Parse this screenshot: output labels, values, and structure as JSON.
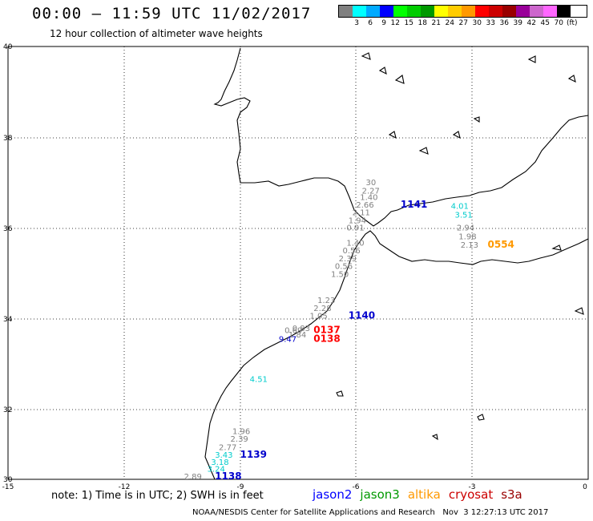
{
  "header": {
    "title": "00:00 – 11:59 UTC 11/02/2017",
    "subtitle": "12 hour collection of altimeter wave heights"
  },
  "legend": {
    "colors": [
      "#808080",
      "#00ffff",
      "#00aaff",
      "#0000ff",
      "#00ff00",
      "#00cc00",
      "#009900",
      "#ffff00",
      "#ffcc00",
      "#ff9900",
      "#ff0000",
      "#cc0000",
      "#990000",
      "#990099",
      "#cc66cc",
      "#ff66ff",
      "#000000"
    ],
    "labels": [
      "3",
      "6",
      "9",
      "12",
      "15",
      "18",
      "21",
      "24",
      "27",
      "30",
      "33",
      "36",
      "39",
      "42",
      "45",
      "70"
    ],
    "unit": "(ft)"
  },
  "map": {
    "lat_labels": [
      "40",
      "38",
      "36",
      "34",
      "32",
      "30"
    ],
    "lon_labels": [
      "-15",
      "-12",
      "-9",
      "-6",
      "-3",
      "0"
    ],
    "markers": [
      {
        "text": "30",
        "color": "#808080",
        "lon": -5.75,
        "lat": 36.8
      },
      {
        "text": "2.27",
        "color": "#808080",
        "lon": -5.85,
        "lat": 36.6
      },
      {
        "text": "1.40",
        "color": "#808080",
        "lon": -5.9,
        "lat": 36.45
      },
      {
        "text": "2.66",
        "color": "#808080",
        "lon": -6.0,
        "lat": 36.28
      },
      {
        "text": "2.11",
        "color": "#808080",
        "lon": -6.1,
        "lat": 36.1
      },
      {
        "text": "1.94",
        "color": "#808080",
        "lon": -6.2,
        "lat": 35.92
      },
      {
        "text": "0.91",
        "color": "#808080",
        "lon": -6.25,
        "lat": 35.75
      },
      {
        "text": "1141",
        "color": "#0000cc",
        "lon": -4.85,
        "lat": 36.28
      },
      {
        "text": "4.01",
        "color": "#00cccc",
        "lon": -3.55,
        "lat": 36.25
      },
      {
        "text": "3.51",
        "color": "#00cccc",
        "lon": -3.45,
        "lat": 36.05
      },
      {
        "text": "2.94",
        "color": "#808080",
        "lon": -3.4,
        "lat": 35.75
      },
      {
        "text": "1.98",
        "color": "#808080",
        "lon": -3.35,
        "lat": 35.55
      },
      {
        "text": "2.13",
        "color": "#808080",
        "lon": -3.3,
        "lat": 35.35
      },
      {
        "text": "0554",
        "color": "#ff9900",
        "lon": -2.6,
        "lat": 35.35
      },
      {
        "text": "1.40",
        "color": "#808080",
        "lon": -6.25,
        "lat": 35.4
      },
      {
        "text": "0.56",
        "color": "#808080",
        "lon": -6.35,
        "lat": 35.22
      },
      {
        "text": "2.39",
        "color": "#808080",
        "lon": -6.45,
        "lat": 35.04
      },
      {
        "text": "0.56",
        "color": "#808080",
        "lon": -6.55,
        "lat": 34.86
      },
      {
        "text": "1.50",
        "color": "#808080",
        "lon": -6.65,
        "lat": 34.68
      },
      {
        "text": "1.23",
        "color": "#808080",
        "lon": -7.0,
        "lat": 34.07
      },
      {
        "text": "2.28",
        "color": "#808080",
        "lon": -7.1,
        "lat": 33.89
      },
      {
        "text": "1.05",
        "color": "#808080",
        "lon": -7.2,
        "lat": 33.71
      },
      {
        "text": "1140",
        "color": "#0000cc",
        "lon": -6.2,
        "lat": 33.71
      },
      {
        "text": "0.69",
        "color": "#808080",
        "lon": -7.85,
        "lat": 33.38
      },
      {
        "text": "0.83",
        "color": "#808080",
        "lon": -7.65,
        "lat": 33.43
      },
      {
        "text": "0137",
        "color": "#ff0000",
        "lon": -7.1,
        "lat": 33.38
      },
      {
        "text": "1.84",
        "color": "#808080",
        "lon": -7.75,
        "lat": 33.28
      },
      {
        "text": "9.47",
        "color": "#0000cc",
        "lon": -8.0,
        "lat": 33.18
      },
      {
        "text": "0138",
        "color": "#ff0000",
        "lon": -7.1,
        "lat": 33.18
      },
      {
        "text": "4.51",
        "color": "#00cccc",
        "lon": -8.75,
        "lat": 32.25
      },
      {
        "text": "1.96",
        "color": "#808080",
        "lon": -9.2,
        "lat": 31.05
      },
      {
        "text": "2.39",
        "color": "#808080",
        "lon": -9.25,
        "lat": 30.87
      },
      {
        "text": "3.43",
        "color": "#00cccc",
        "lon": -9.65,
        "lat": 30.5
      },
      {
        "text": "2.77",
        "color": "#808080",
        "lon": -9.55,
        "lat": 30.68
      },
      {
        "text": "1139",
        "color": "#0000cc",
        "lon": -9.0,
        "lat": 30.5
      },
      {
        "text": "3.18",
        "color": "#00cccc",
        "lon": -9.75,
        "lat": 30.33
      },
      {
        "text": "3.24",
        "color": "#00cccc",
        "lon": -9.85,
        "lat": 30.18
      },
      {
        "text": "2.89",
        "color": "#808080",
        "lon": -10.45,
        "lat": 30.0
      },
      {
        "text": "1138",
        "color": "#0000cc",
        "lon": -9.65,
        "lat": 30.0
      }
    ]
  },
  "footer": {
    "note": "note: 1) Time is in UTC; 2) SWH is in feet",
    "satellites": [
      {
        "name": "jason2",
        "color": "#0000ff"
      },
      {
        "name": "jason3",
        "color": "#009900"
      },
      {
        "name": "altika",
        "color": "#ff9900"
      },
      {
        "name": "cryosat",
        "color": "#cc0000"
      },
      {
        "name": "s3a",
        "color": "#990000"
      }
    ],
    "credit": "NOAA/NESDIS Center for Satellite Applications and Research   Nov  3 12:27:13 UTC 2017"
  }
}
